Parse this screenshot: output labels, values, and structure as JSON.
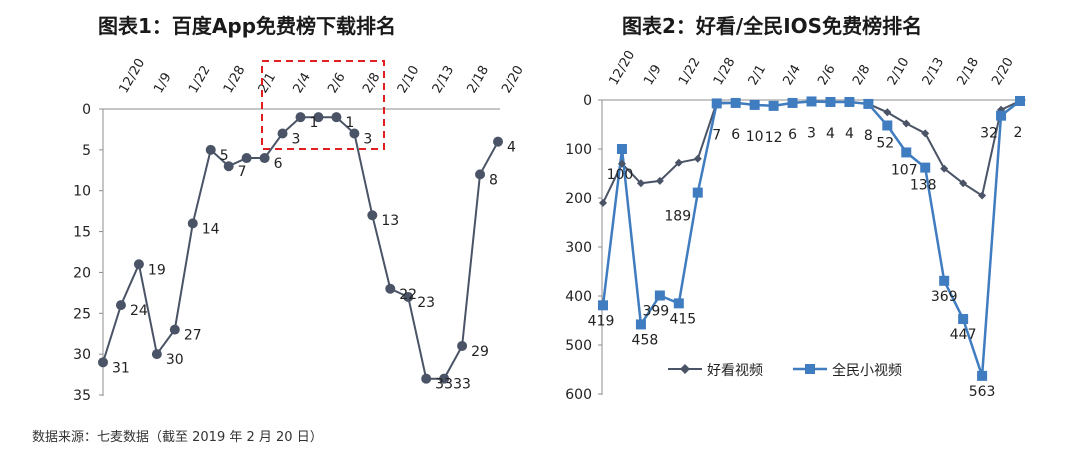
{
  "source_note": "数据来源：七麦数据（截至 2019 年 2 月 20 日）",
  "colors": {
    "series_dark": "#4a5466",
    "series_blue": "#3f7cc0",
    "highlight": "#e02020",
    "axis": "#8c8c8c"
  },
  "chart_data": [
    {
      "type": "line",
      "title": "图表1：百度App免费榜下载排名",
      "xlabel": "",
      "ylabel": "",
      "y_inverted": true,
      "ylim": [
        0,
        35
      ],
      "yticks": [
        0,
        5,
        10,
        15,
        20,
        25,
        30,
        35
      ],
      "x_tick_labels": [
        "12/20",
        "1/9",
        "1/22",
        "1/28",
        "2/1",
        "2/4",
        "2/6",
        "2/8",
        "2/10",
        "2/13",
        "2/18",
        "2/20"
      ],
      "grid": false,
      "highlight_box": "dashed red box around 2/4 – 2/8",
      "series": [
        {
          "values": [
            31,
            24,
            19,
            30,
            27,
            14,
            5,
            7,
            6,
            6,
            3,
            1,
            1,
            1,
            3,
            13,
            22,
            23,
            33,
            33,
            29,
            8,
            4
          ],
          "labels": [
            "31",
            "24",
            "19",
            "30",
            "27",
            "14",
            "5",
            "7",
            "",
            "6",
            "3",
            "1",
            "",
            "1",
            "3",
            "13",
            "22",
            "23",
            "33",
            "33",
            "29",
            "8",
            "4"
          ]
        }
      ]
    },
    {
      "type": "line",
      "title": "图表2：好看/全民IOS免费榜排名",
      "xlabel": "",
      "ylabel": "",
      "y_inverted": true,
      "ylim": [
        0,
        600
      ],
      "yticks": [
        0,
        100,
        200,
        300,
        400,
        500,
        600
      ],
      "x_tick_labels": [
        "12/20",
        "1/9",
        "1/22",
        "1/28",
        "2/1",
        "2/4",
        "2/6",
        "2/8",
        "2/10",
        "2/13",
        "2/18",
        "2/20"
      ],
      "grid": false,
      "legend": "bottom-center",
      "series": [
        {
          "name": "好看视频",
          "marker": "diamond",
          "values": [
            210,
            130,
            170,
            165,
            128,
            120,
            5,
            6,
            10,
            12,
            6,
            3,
            4,
            4,
            8,
            25,
            48,
            68,
            140,
            170,
            195,
            20,
            2
          ]
        },
        {
          "name": "全民小视频",
          "marker": "square",
          "values": [
            419,
            100,
            458,
            399,
            415,
            189,
            7,
            6,
            10,
            12,
            6,
            3,
            4,
            4,
            8,
            52,
            107,
            138,
            369,
            447,
            563,
            32,
            2
          ],
          "labels": [
            "419",
            "100",
            "458",
            "399",
            "415",
            "189",
            "7",
            "6",
            "10",
            "12",
            "6",
            "3",
            "4",
            "4",
            "8",
            "52",
            "107",
            "138",
            "369",
            "447",
            "563",
            "32",
            "2"
          ]
        }
      ]
    }
  ]
}
